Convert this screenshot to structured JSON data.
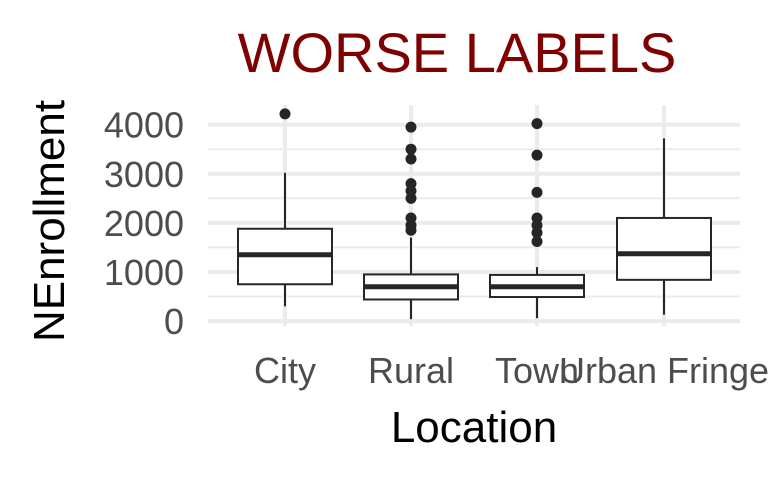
{
  "chart_data": {
    "type": "boxplot",
    "title": "WORSE LABELS",
    "title_color": "#7f0000",
    "xlabel": "Location",
    "ylabel": "NEnrollment",
    "ylim": [
      -100,
      4400
    ],
    "yticks": [
      0,
      1000,
      2000,
      3000,
      4000
    ],
    "ytick_labels": [
      "0",
      "1000",
      "2000",
      "3000",
      "4000"
    ],
    "grid": true,
    "background": "#ffffff",
    "grid_color": "#ebebeb",
    "box_line_color": "#262626",
    "box_fill": "#ffffff",
    "categories": [
      "City",
      "Rural",
      "Town",
      "Urban Fringe"
    ],
    "boxes": [
      {
        "category": "City",
        "whisker_low": 300,
        "q1": 750,
        "median": 1350,
        "q3": 1880,
        "whisker_high": 3020,
        "outliers": [
          4220
        ]
      },
      {
        "category": "Rural",
        "whisker_low": 40,
        "q1": 440,
        "median": 700,
        "q3": 950,
        "whisker_high": 1700,
        "outliers": [
          1850,
          1950,
          2100,
          2500,
          2650,
          2800,
          3300,
          3500,
          3950
        ]
      },
      {
        "category": "Town",
        "whisker_low": 60,
        "q1": 490,
        "median": 700,
        "q3": 940,
        "whisker_high": 1100,
        "outliers": [
          1620,
          1800,
          1950,
          2100,
          2620,
          3380,
          4020
        ]
      },
      {
        "category": "Urban Fringe",
        "whisker_low": 130,
        "q1": 840,
        "median": 1370,
        "q3": 2100,
        "whisker_high": 3720,
        "outliers": []
      }
    ]
  }
}
